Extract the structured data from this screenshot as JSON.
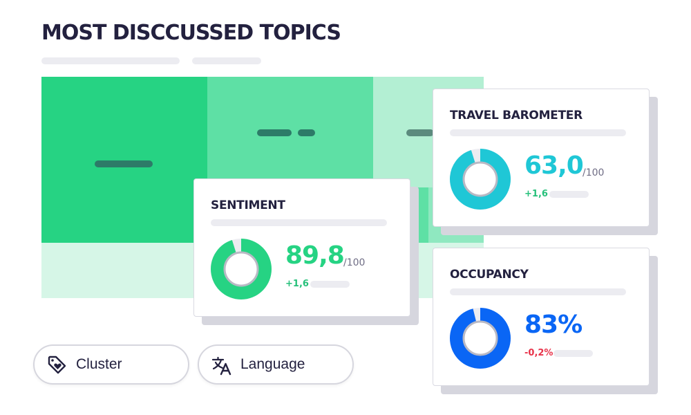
{
  "title": "MOST DISCCUSSED TOPICS",
  "colors": {
    "dark_navy": "#23213f",
    "green": "#26d383",
    "teal": "#1fc7d6",
    "blue": "#0a66f5",
    "positive_delta": "#26c07a",
    "negative_delta": "#e8334a"
  },
  "cards": {
    "sentiment": {
      "title": "SENTIMENT",
      "value": "89,8",
      "scale": "/100",
      "delta": "+1,6",
      "fill_fraction": 0.95,
      "color": "#26d383"
    },
    "travel_barometer": {
      "title": "TRAVEL BAROMETER",
      "value": "63,0",
      "scale": "/100",
      "delta": "+1,6",
      "fill_fraction": 0.95,
      "color": "#1fc7d6"
    },
    "occupancy": {
      "title": "OCCUPANCY",
      "value": "83%",
      "scale": "",
      "delta": "-0,2%",
      "fill_fraction": 0.96,
      "color": "#0a66f5"
    }
  },
  "filters": [
    {
      "label": "Cluster",
      "icon": "tag-heart-icon"
    },
    {
      "label": "Language",
      "icon": "translate-icon"
    }
  ]
}
